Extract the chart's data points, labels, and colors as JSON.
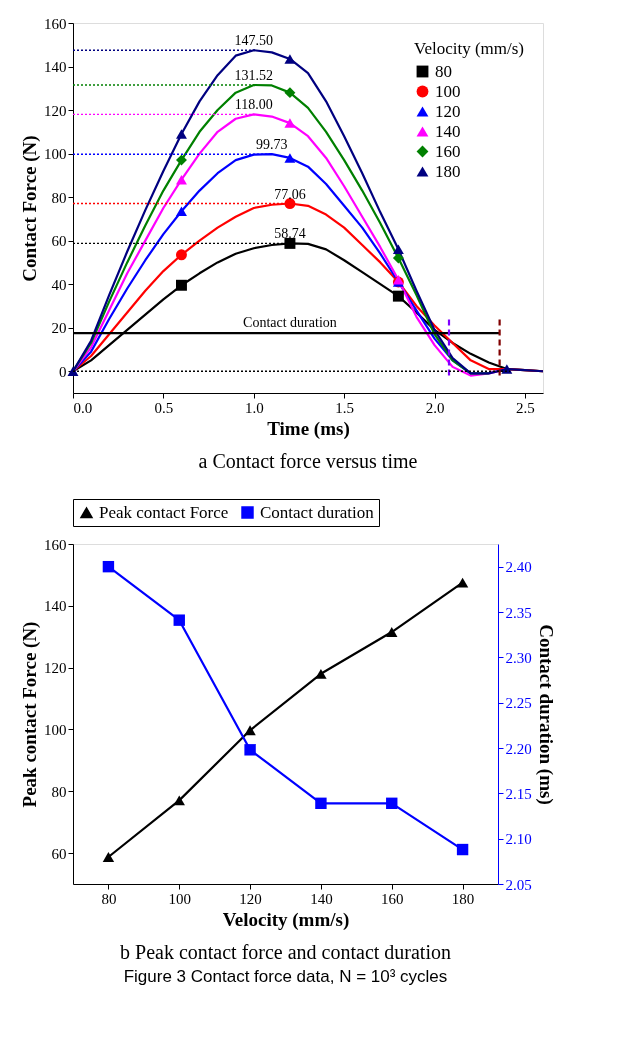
{
  "chart_data": [
    {
      "type": "line",
      "title": "a  Contact force versus time",
      "xlabel": "Time (ms)",
      "ylabel": "Contact Force (N)",
      "legend_title": "Velocity (mm/s)",
      "legend": "top right",
      "xlim": [
        0,
        2.6
      ],
      "ylim": [
        -10,
        160
      ],
      "xticks": [
        {
          "value": 0,
          "label": "0.0"
        },
        {
          "value": 0.5,
          "label": "0.5"
        },
        {
          "value": 1,
          "label": "1.0"
        },
        {
          "value": 1.5,
          "label": "1.5"
        },
        {
          "value": 2,
          "label": "2.0"
        },
        {
          "value": 2.5,
          "label": "2.5"
        }
      ],
      "yticks": [
        0,
        20,
        40,
        60,
        80,
        100,
        120,
        140,
        160
      ],
      "series": [
        {
          "name": "80",
          "color": "#000000",
          "x": [
            0,
            0.1,
            0.2,
            0.3,
            0.4,
            0.5,
            0.6,
            0.7,
            0.8,
            0.9,
            1.0,
            1.1,
            1.2,
            1.3,
            1.4,
            1.5,
            1.6,
            1.7,
            1.8,
            1.9,
            2.0,
            2.1,
            2.2,
            2.3,
            2.4,
            2.5,
            2.6
          ],
          "values": [
            0,
            5,
            12,
            19,
            26,
            33,
            39.5,
            45,
            50,
            54,
            56.5,
            58,
            58.74,
            58.5,
            56,
            51,
            45.5,
            40,
            34.5,
            27,
            19,
            13,
            8,
            4,
            1,
            0.5,
            0
          ]
        },
        {
          "name": "100",
          "color": "#ff0000",
          "x": [
            0,
            0.1,
            0.2,
            0.3,
            0.4,
            0.5,
            0.6,
            0.7,
            0.8,
            0.9,
            1.0,
            1.1,
            1.2,
            1.3,
            1.4,
            1.5,
            1.6,
            1.7,
            1.8,
            1.9,
            2.0,
            2.1,
            2.2,
            2.3,
            2.4,
            2.5,
            2.6
          ],
          "values": [
            0,
            7,
            17,
            27,
            37,
            46,
            53.5,
            60,
            66,
            71,
            75,
            76.5,
            77.06,
            76,
            72,
            66,
            58,
            50,
            41,
            30,
            21,
            13,
            5,
            1,
            1,
            0.5,
            0
          ]
        },
        {
          "name": "120",
          "color": "#0000ff",
          "x": [
            0,
            0.1,
            0.2,
            0.3,
            0.4,
            0.5,
            0.6,
            0.7,
            0.8,
            0.9,
            1.0,
            1.1,
            1.2,
            1.3,
            1.4,
            1.5,
            1.6,
            1.7,
            1.8,
            1.9,
            2.0,
            2.1,
            2.2
          ],
          "values": [
            0,
            9,
            24,
            38,
            51,
            63,
            73.5,
            83,
            91,
            97,
            99.5,
            99.73,
            98,
            94,
            86,
            76,
            66,
            54,
            41,
            28,
            15,
            5,
            -1
          ]
        },
        {
          "name": "140",
          "color": "#ff00ff",
          "x": [
            0,
            0.1,
            0.2,
            0.3,
            0.4,
            0.5,
            0.6,
            0.7,
            0.8,
            0.9,
            1.0,
            1.1,
            1.2,
            1.3,
            1.4,
            1.5,
            1.6,
            1.7,
            1.8,
            1.9,
            2.0,
            2.1,
            2.2,
            2.3,
            2.4
          ],
          "values": [
            0,
            11,
            28,
            45,
            60,
            75,
            88,
            100,
            110,
            116,
            118,
            117,
            114,
            108,
            98,
            85,
            71,
            57,
            42,
            25,
            12,
            2,
            -2,
            -1,
            1
          ]
        },
        {
          "name": "160",
          "color": "#008000",
          "x": [
            0,
            0.1,
            0.2,
            0.3,
            0.4,
            0.5,
            0.6,
            0.7,
            0.8,
            0.9,
            1.0,
            1.1,
            1.2,
            1.3,
            1.4,
            1.5,
            1.6,
            1.7,
            1.8,
            1.9,
            2.0,
            2.1,
            2.2,
            2.3
          ],
          "values": [
            0,
            13,
            32,
            50,
            67,
            83,
            97,
            110,
            120,
            128,
            131.52,
            131.3,
            128,
            121,
            110,
            97,
            83,
            68,
            52,
            35,
            17,
            5,
            -1,
            -1
          ]
        },
        {
          "name": "180",
          "color": "#000080",
          "x": [
            0,
            0.1,
            0.2,
            0.3,
            0.4,
            0.5,
            0.6,
            0.7,
            0.8,
            0.9,
            1.0,
            1.1,
            1.2,
            1.3,
            1.4,
            1.5,
            1.6,
            1.7,
            1.8,
            1.9,
            2.0,
            2.1,
            2.2,
            2.3,
            2.4,
            2.5,
            2.6
          ],
          "values": [
            0,
            14,
            35,
            55,
            74,
            92,
            109,
            124,
            136,
            145,
            147.5,
            146.5,
            143.5,
            137,
            124,
            108,
            91,
            73,
            56,
            37,
            19,
            6,
            -1,
            -1,
            1,
            0.5,
            0
          ]
        },
        {
          "type": "scatter",
          "color": "#000000",
          "marker": "square",
          "x": [
            0.6,
            1.2,
            1.8
          ],
          "values": [
            39.5,
            58.74,
            34.5
          ]
        },
        {
          "type": "scatter",
          "color": "#ff0000",
          "marker": "circle",
          "x": [
            0.6,
            1.2,
            1.8
          ],
          "values": [
            53.5,
            77.06,
            41
          ]
        },
        {
          "type": "scatter",
          "color": "#0000ff",
          "marker": "triangle",
          "x": [
            0.6,
            1.2,
            1.8
          ],
          "values": [
            73.5,
            98,
            41
          ]
        },
        {
          "type": "scatter",
          "color": "#ff00ff",
          "marker": "triangle",
          "x": [
            0.6,
            1.2,
            1.8
          ],
          "values": [
            88,
            114,
            42
          ]
        },
        {
          "type": "scatter",
          "color": "#008000",
          "marker": "diamond",
          "x": [
            0.6,
            1.2,
            1.8
          ],
          "values": [
            97,
            128,
            52
          ]
        },
        {
          "type": "scatter",
          "color": "#000080",
          "marker": "triangle",
          "x": [
            0,
            0.6,
            1.2,
            1.8,
            2.4
          ],
          "values": [
            0,
            109,
            143.5,
            56,
            1
          ]
        },
        {
          "type": "line",
          "color": "#000000",
          "line_style": "solid",
          "x": [
            0,
            2.36
          ],
          "values": [
            17.5,
            17.5
          ]
        },
        {
          "type": "line",
          "color": "#8000ff",
          "line_style": "dashed",
          "x": [
            2.08,
            2.08
          ],
          "values": [
            -2,
            24
          ]
        },
        {
          "type": "line",
          "color": "#800000",
          "line_style": "dashed",
          "x": [
            2.36,
            2.36
          ],
          "values": [
            -2,
            24
          ]
        }
      ],
      "ref_lines": [
        {
          "axis": "y",
          "value": 147.5,
          "label": "147.50",
          "color": "#000080",
          "line_style": "dotted"
        },
        {
          "axis": "y",
          "value": 131.52,
          "label": "131.52",
          "color": "#008000",
          "line_style": "dotted"
        },
        {
          "axis": "y",
          "value": 118,
          "label": "118.00",
          "color": "#ff00ff",
          "line_style": "dotted"
        },
        {
          "axis": "y",
          "value": 99.73,
          "label": "99.73",
          "color": "#0000ff",
          "line_style": "dotted"
        },
        {
          "axis": "y",
          "value": 77.06,
          "label": "77.06",
          "color": "#ff0000",
          "line_style": "dotted"
        },
        {
          "axis": "y",
          "value": 58.74,
          "label": "58.74",
          "color": "#000000",
          "line_style": "dotted"
        },
        {
          "axis": "y",
          "value": 0,
          "color": "#000000",
          "line_style": "dotted"
        }
      ],
      "annotations": [
        {
          "text": "Contact duration",
          "x": 1.2,
          "y": 17.5
        }
      ]
    },
    {
      "type": "line",
      "title": "b  Peak contact force and contact duration",
      "xlabel": "Velocity (mm/s)",
      "ylabel": "Peak contact Force (N)",
      "y2label": "Contact duration (ms)",
      "legend": "top",
      "xlim": [
        70,
        190
      ],
      "ylim": [
        50,
        160
      ],
      "y2lim": [
        2.05,
        2.425
      ],
      "xticks": [
        80,
        100,
        120,
        140,
        160,
        180
      ],
      "yticks": [
        60,
        80,
        100,
        120,
        140,
        160
      ],
      "y2ticks": [
        2.05,
        {
          "value": 2.1,
          "label": "2.10"
        },
        2.15,
        {
          "value": 2.2,
          "label": "2.20"
        },
        2.25,
        {
          "value": 2.3,
          "label": "2.30"
        },
        2.35,
        {
          "value": 2.4,
          "label": "2.40"
        }
      ],
      "x": [
        80,
        100,
        120,
        140,
        160,
        180
      ],
      "series": [
        {
          "name": "Peak contact Force",
          "color": "#000000",
          "marker": "triangle",
          "values": [
            58.74,
            77.06,
            99.73,
            118.0,
            131.52,
            147.5
          ]
        },
        {
          "name": "Contact duration",
          "color": "#0000ff",
          "marker": "square",
          "axis": "y2",
          "values": [
            2.4,
            2.341,
            2.198,
            2.139,
            2.139,
            2.088
          ]
        }
      ],
      "annotations": [
        "Figure 3  Contact force data, N = 10³ cycles"
      ]
    }
  ]
}
